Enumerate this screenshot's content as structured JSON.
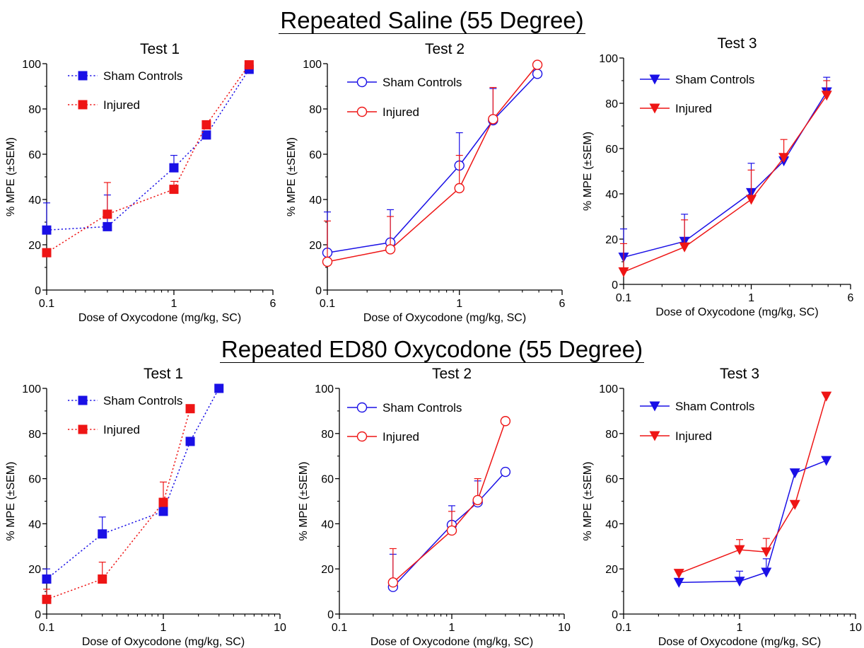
{
  "sections": [
    {
      "title": "Repeated Saline (55 Degree)"
    },
    {
      "title": "Repeated ED80 Oxycodone (55 Degree)"
    }
  ],
  "colors": {
    "sham": "#1a10e6",
    "injured": "#ee1515"
  },
  "chart_data": [
    {
      "type": "line",
      "section": 0,
      "title": "Test 1",
      "xlabel": "Dose of Oxycodone (mg/kg, SC)",
      "ylabel": "% MPE (±SEM)",
      "xscale": "log",
      "xlim": [
        0.1,
        6
      ],
      "ylim": [
        0,
        100
      ],
      "xticks": [
        0.1,
        1,
        6
      ],
      "xtick_labels": [
        "0.1",
        "1",
        "6"
      ],
      "yticks": [
        0,
        20,
        40,
        60,
        80,
        100
      ],
      "ytick_labels": [
        "0",
        "20",
        "40",
        "60",
        "80",
        "100"
      ],
      "line_style": "dotted",
      "marker": "square",
      "legend_loc": "top-left",
      "series": [
        {
          "name": "Sham Controls",
          "color": "#1a10e6",
          "x": [
            0.1,
            0.3,
            1,
            1.8,
            3.9
          ],
          "y": [
            26.5,
            28,
            54,
            68.5,
            97.5
          ],
          "err": [
            12,
            14,
            5.5,
            0,
            0
          ]
        },
        {
          "name": "Injured",
          "color": "#ee1515",
          "x": [
            0.1,
            0.3,
            1,
            1.8,
            3.9
          ],
          "y": [
            16.5,
            33.5,
            44.5,
            73,
            99.5
          ],
          "err": [
            0,
            14,
            3.5,
            0,
            0
          ]
        }
      ]
    },
    {
      "type": "line",
      "section": 0,
      "title": "Test 2",
      "xlabel": "Dose of Oxycodone (mg/kg, SC)",
      "ylabel": "% MPE (±SEM)",
      "xscale": "log",
      "xlim": [
        0.1,
        6
      ],
      "ylim": [
        0,
        100
      ],
      "xticks": [
        0.1,
        1,
        6
      ],
      "xtick_labels": [
        "0.1",
        "1",
        "6"
      ],
      "yticks": [
        0,
        20,
        40,
        60,
        80,
        100
      ],
      "ytick_labels": [
        "0",
        "20",
        "40",
        "60",
        "80",
        "100"
      ],
      "line_style": "solid",
      "marker": "circle-open",
      "legend_loc": "top-left",
      "series": [
        {
          "name": "Sham Controls",
          "color": "#1a10e6",
          "x": [
            0.1,
            0.3,
            1,
            1.8,
            3.9
          ],
          "y": [
            16.5,
            21,
            55,
            75,
            95.5
          ],
          "err": [
            18,
            14.5,
            14.5,
            14,
            0
          ]
        },
        {
          "name": "Injured",
          "color": "#ee1515",
          "x": [
            0.1,
            0.3,
            1,
            1.8,
            3.9
          ],
          "y": [
            12.5,
            18,
            45,
            75.5,
            99.5
          ],
          "err": [
            18,
            14.5,
            14.5,
            14,
            0
          ]
        }
      ]
    },
    {
      "type": "line",
      "section": 0,
      "title": "Test 3",
      "xlabel": "Dose of Oxycodone (mg/kg, SC)",
      "ylabel": "% MPE (±SEM)",
      "xscale": "log",
      "xlim": [
        0.1,
        6
      ],
      "ylim": [
        0,
        100
      ],
      "xticks": [
        0.1,
        1,
        6
      ],
      "xtick_labels": [
        "0.1",
        "1",
        "6"
      ],
      "yticks": [
        0,
        20,
        40,
        60,
        80,
        100
      ],
      "ytick_labels": [
        "0",
        "20",
        "40",
        "60",
        "80",
        "100"
      ],
      "line_style": "solid",
      "marker": "triangle-down",
      "legend_loc": "top-left",
      "series": [
        {
          "name": "Sham Controls",
          "color": "#1a10e6",
          "x": [
            0.1,
            0.3,
            1,
            1.8,
            3.9
          ],
          "y": [
            12,
            19,
            40.5,
            54.5,
            85
          ],
          "err": [
            12.5,
            12,
            13,
            0,
            6.5
          ]
        },
        {
          "name": "Injured",
          "color": "#ee1515",
          "x": [
            0.1,
            0.3,
            1,
            1.8,
            3.9
          ],
          "y": [
            5.5,
            16.5,
            37.5,
            56,
            83.5
          ],
          "err": [
            12.5,
            12,
            13,
            8,
            6.5
          ]
        }
      ]
    },
    {
      "type": "line",
      "section": 1,
      "title": "Test 1",
      "xlabel": "Dose of Oxycodone (mg/kg, SC)",
      "ylabel": "% MPE (±SEM)",
      "xscale": "log",
      "xlim": [
        0.1,
        10
      ],
      "ylim": [
        0,
        100
      ],
      "xticks": [
        0.1,
        1,
        10
      ],
      "xtick_labels": [
        "0.1",
        "1",
        "10"
      ],
      "yticks": [
        0,
        20,
        40,
        60,
        80,
        100
      ],
      "ytick_labels": [
        "0",
        "20",
        "40",
        "60",
        "80",
        "100"
      ],
      "line_style": "dotted",
      "marker": "square",
      "legend_loc": "top-left",
      "series": [
        {
          "name": "Sham Controls",
          "color": "#1a10e6",
          "x": [
            0.1,
            0.3,
            1,
            1.7,
            3
          ],
          "y": [
            15.5,
            35.5,
            45.5,
            76.5,
            100
          ],
          "err": [
            4.5,
            7.5,
            4,
            0,
            0
          ]
        },
        {
          "name": "Injured",
          "color": "#ee1515",
          "x": [
            0.1,
            0.3,
            1,
            1.7
          ],
          "y": [
            6.5,
            15.5,
            49.5,
            91
          ],
          "err": [
            4.5,
            7.5,
            9,
            0
          ]
        }
      ]
    },
    {
      "type": "line",
      "section": 1,
      "title": "Test 2",
      "xlabel": "Dose of Oxycodone (mg/kg, SC)",
      "ylabel": "% MPE (±SEM)",
      "xscale": "log",
      "xlim": [
        0.1,
        10
      ],
      "ylim": [
        0,
        100
      ],
      "xticks": [
        0.1,
        1,
        10
      ],
      "xtick_labels": [
        "0.1",
        "1",
        "10"
      ],
      "yticks": [
        0,
        20,
        40,
        60,
        80,
        100
      ],
      "ytick_labels": [
        "0",
        "20",
        "40",
        "60",
        "80",
        "100"
      ],
      "line_style": "solid",
      "marker": "circle-open",
      "legend_loc": "top-left",
      "series": [
        {
          "name": "Sham Controls",
          "color": "#1a10e6",
          "x": [
            0.3,
            1,
            1.7,
            3
          ],
          "y": [
            12,
            39.5,
            49.5,
            63
          ],
          "err": [
            14.5,
            8.5,
            9.5,
            0
          ]
        },
        {
          "name": "Injured",
          "color": "#ee1515",
          "x": [
            0.3,
            1,
            1.7,
            3
          ],
          "y": [
            14,
            37,
            50.5,
            85.5
          ],
          "err": [
            15,
            8.5,
            9.5,
            0
          ]
        }
      ]
    },
    {
      "type": "line",
      "section": 1,
      "title": "Test 3",
      "xlabel": "Dose of Oxycodone (mg/kg, SC)",
      "ylabel": "% MPE (±SEM)",
      "xscale": "log",
      "xlim": [
        0.1,
        10
      ],
      "ylim": [
        0,
        100
      ],
      "xticks": [
        0.1,
        1,
        10
      ],
      "xtick_labels": [
        "0.1",
        "1",
        "10"
      ],
      "yticks": [
        0,
        20,
        40,
        60,
        80,
        100
      ],
      "ytick_labels": [
        "0",
        "20",
        "40",
        "60",
        "80",
        "100"
      ],
      "line_style": "solid",
      "marker": "triangle-down",
      "legend_loc": "top-left",
      "series": [
        {
          "name": "Sham Controls",
          "color": "#1a10e6",
          "x": [
            0.3,
            1,
            1.7,
            3,
            5.6
          ],
          "y": [
            14,
            14.5,
            18.5,
            62.5,
            68
          ],
          "err": [
            0,
            4.5,
            6,
            0,
            0
          ]
        },
        {
          "name": "Injured",
          "color": "#ee1515",
          "x": [
            0.3,
            1,
            1.7,
            3,
            5.6
          ],
          "y": [
            18,
            28.5,
            27.5,
            48.5,
            96.5
          ],
          "err": [
            0,
            4.5,
            6,
            0,
            0
          ]
        }
      ]
    }
  ]
}
